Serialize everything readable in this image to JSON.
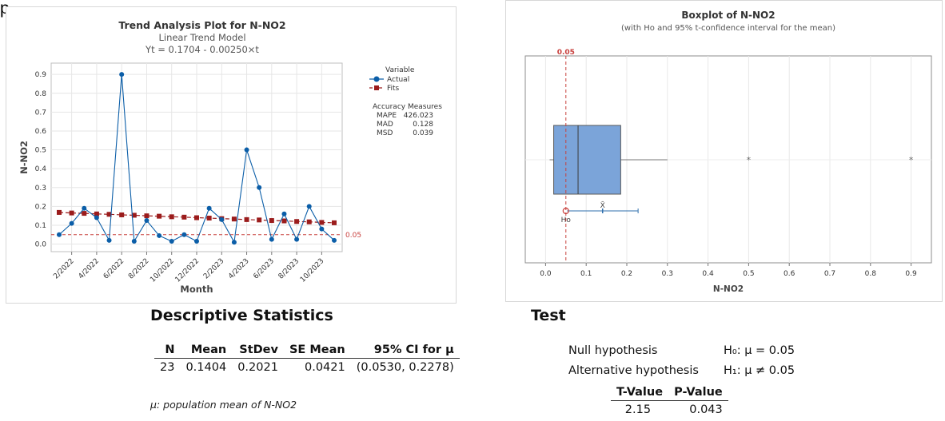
{
  "header_fragment": "p",
  "chart_data": [
    {
      "type": "line",
      "title": "Trend Analysis Plot for N-NO2",
      "subtitle": "Linear Trend Model",
      "equation": "Yt = 0.1704 - 0.00250×t",
      "xlabel": "Month",
      "ylabel": "N-NO2",
      "x_tick_labels": [
        "2/2022",
        "4/2022",
        "6/2022",
        "8/2022",
        "10/2022",
        "12/2022",
        "2/2023",
        "4/2023",
        "6/2023",
        "8/2023",
        "10/2023"
      ],
      "ylim": [
        -0.04,
        0.96
      ],
      "y_ticks": [
        0.0,
        0.1,
        0.2,
        0.3,
        0.4,
        0.5,
        0.6,
        0.7,
        0.8,
        0.9
      ],
      "y_tick_labels": [
        "0.0",
        "0.1",
        "0.2",
        "0.3",
        "0.4",
        "0.5",
        "0.6",
        "0.7",
        "0.8",
        "0.9"
      ],
      "grid": true,
      "series": [
        {
          "name": "Actual",
          "color": "#0b5ea8",
          "values": [
            0.05,
            0.11,
            0.19,
            0.14,
            0.02,
            0.9,
            0.015,
            0.125,
            0.045,
            0.015,
            0.05,
            0.015,
            0.19,
            0.13,
            0.01,
            0.5,
            0.3,
            0.025,
            0.16,
            0.025,
            0.2,
            0.08,
            0.02
          ]
        },
        {
          "name": "Fits",
          "color": "#9b1c1c",
          "values": [
            0.168,
            0.165,
            0.163,
            0.16,
            0.158,
            0.155,
            0.153,
            0.15,
            0.148,
            0.145,
            0.143,
            0.14,
            0.138,
            0.135,
            0.133,
            0.13,
            0.128,
            0.125,
            0.123,
            0.12,
            0.118,
            0.115,
            0.113
          ]
        }
      ],
      "reference_line": {
        "value": 0.05,
        "label": "0.05",
        "color": "#c8403d"
      },
      "legend": {
        "title": "Variable",
        "placement": "right",
        "items": [
          "Actual",
          "Fits"
        ]
      },
      "accuracy": {
        "title": "Accuracy Measures",
        "rows": [
          [
            "MAPE",
            "426.023"
          ],
          [
            "MAD",
            "0.128"
          ],
          [
            "MSD",
            "0.039"
          ]
        ]
      }
    },
    {
      "type": "boxplot",
      "title": "Boxplot of N-NO2",
      "subtitle": "(with Ho and 95% t-confidence interval for the mean)",
      "xlabel": "N-NO2",
      "xlim": [
        -0.05,
        0.95
      ],
      "x_ticks": [
        0.0,
        0.1,
        0.2,
        0.3,
        0.4,
        0.5,
        0.6,
        0.7,
        0.8,
        0.9
      ],
      "x_tick_labels": [
        "0.0",
        "0.1",
        "0.2",
        "0.3",
        "0.4",
        "0.5",
        "0.6",
        "0.7",
        "0.8",
        "0.9"
      ],
      "box": {
        "min": 0.01,
        "q1": 0.02,
        "median": 0.08,
        "q3": 0.185,
        "whisker_high": 0.3
      },
      "outliers": [
        0.5,
        0.9
      ],
      "mean": 0.1404,
      "ci": [
        0.053,
        0.2278
      ],
      "h0": 0.05,
      "h0_label": "Ho",
      "mean_label": "X̄",
      "ref_label": "0.05",
      "box_color": "#7ba4d9",
      "ref_color": "#c8403d"
    }
  ],
  "descriptive": {
    "title": "Descriptive Statistics",
    "headers": [
      "N",
      "Mean",
      "StDev",
      "SE Mean",
      "95% CI for μ"
    ],
    "row": [
      "23",
      "0.1404",
      "0.2021",
      "0.0421",
      "(0.0530, 0.2278)"
    ],
    "note": "μ: population mean of N-NO2"
  },
  "test": {
    "title": "Test",
    "null_label": "Null hypothesis",
    "null_value": "H₀: μ = 0.05",
    "alt_label": "Alternative hypothesis",
    "alt_value": "H₁: μ ≠ 0.05",
    "headers": [
      "T-Value",
      "P-Value"
    ],
    "row": [
      "2.15",
      "0.043"
    ]
  }
}
